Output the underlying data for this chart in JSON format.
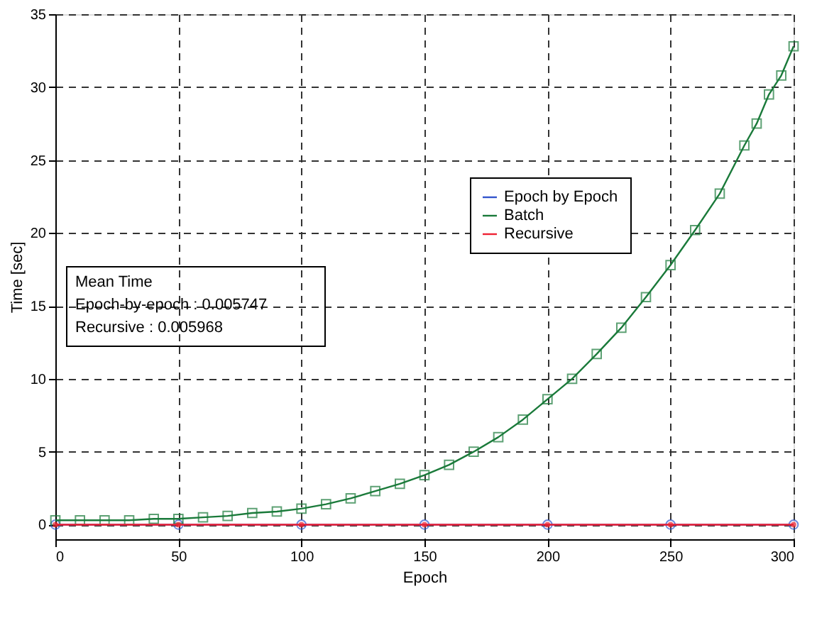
{
  "chart_data": {
    "type": "line",
    "xlabel": "Epoch",
    "ylabel": "Time [sec]",
    "xlim": [
      0,
      300
    ],
    "xticks": [
      0,
      50,
      100,
      150,
      200,
      250,
      300
    ],
    "ylim": [
      -1,
      35
    ],
    "yticks": [
      0,
      5,
      10,
      15,
      20,
      25,
      30,
      35
    ],
    "grid": true,
    "legend": "top right",
    "annotations": [
      "Mean Time",
      "Epoch-by-epoch : 0.005747",
      "Recursive : 0.005968"
    ],
    "series": [
      {
        "name": "Epoch by Epoch",
        "color": "#3355cc",
        "marker": "circle",
        "x": [
          0,
          50,
          100,
          150,
          200,
          250,
          300
        ],
        "values": [
          0,
          0,
          0,
          0,
          0,
          0,
          0
        ]
      },
      {
        "name": "Batch",
        "color": "#1a7a3a",
        "marker": "square",
        "x": [
          0,
          10,
          20,
          30,
          40,
          50,
          60,
          70,
          80,
          90,
          100,
          110,
          120,
          130,
          140,
          150,
          160,
          170,
          180,
          190,
          200,
          210,
          220,
          230,
          240,
          250,
          260,
          270,
          280,
          285,
          290,
          295,
          300
        ],
        "values": [
          0.3,
          0.3,
          0.3,
          0.3,
          0.4,
          0.4,
          0.5,
          0.6,
          0.8,
          0.9,
          1.1,
          1.4,
          1.8,
          2.3,
          2.8,
          3.4,
          4.1,
          5.0,
          6.0,
          7.2,
          8.6,
          10.0,
          11.7,
          13.5,
          15.6,
          17.8,
          20.2,
          22.7,
          26.0,
          27.5,
          29.5,
          30.8,
          32.8
        ]
      },
      {
        "name": "Recursive",
        "color": "#ee2233",
        "marker": "circle",
        "x": [
          0,
          50,
          100,
          150,
          200,
          250,
          300
        ],
        "values": [
          0,
          0,
          0,
          0,
          0,
          0,
          0
        ]
      }
    ]
  }
}
